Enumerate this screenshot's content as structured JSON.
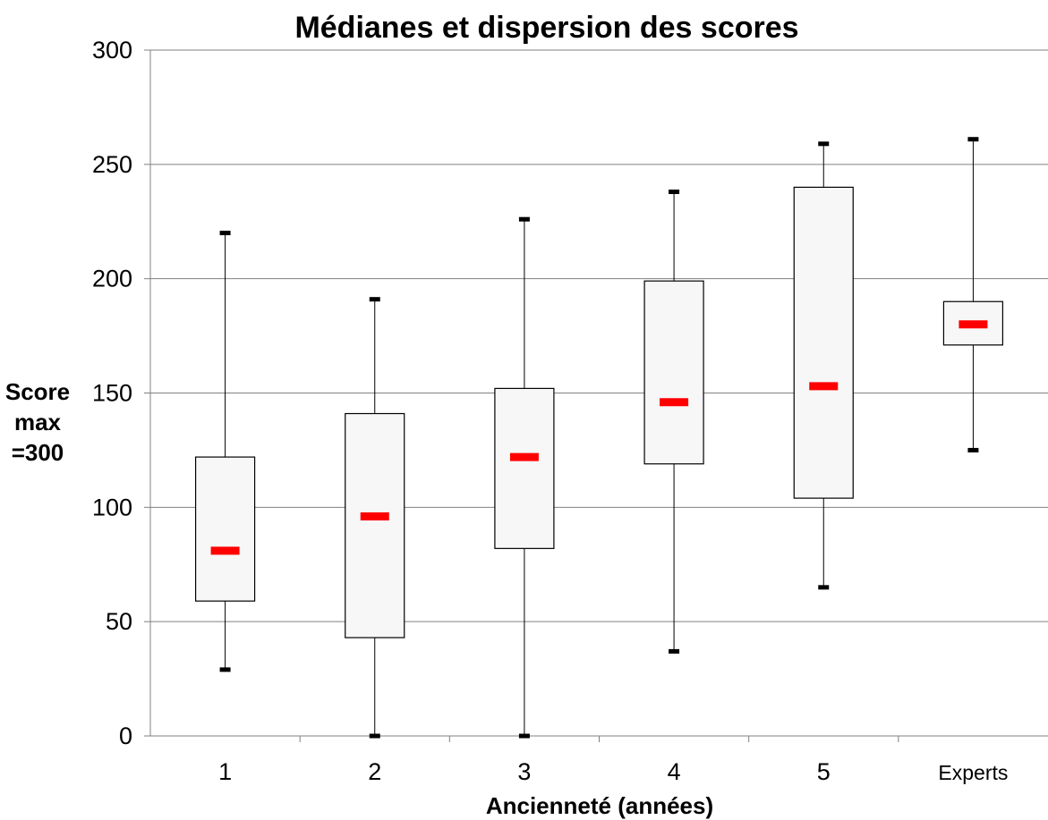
{
  "chart_data": {
    "type": "boxplot",
    "title": "Médianes et dispersion des scores",
    "xlabel": "Ancienneté (années)",
    "ylabel_lines": [
      "Score",
      "max",
      "=300"
    ],
    "ylim": [
      0,
      300
    ],
    "yticks": [
      "0",
      "50",
      "100",
      "150",
      "200",
      "250",
      "300"
    ],
    "grid": true,
    "categories": [
      "1",
      "2",
      "3",
      "4",
      "5",
      "Experts"
    ],
    "series": [
      {
        "min": 29,
        "q1": 59,
        "median": 81,
        "q3": 122,
        "max": 220
      },
      {
        "min": 0,
        "q1": 43,
        "median": 96,
        "q3": 141,
        "max": 191
      },
      {
        "min": 0,
        "q1": 82,
        "median": 122,
        "q3": 152,
        "max": 226
      },
      {
        "min": 37,
        "q1": 119,
        "median": 146,
        "q3": 199,
        "max": 238
      },
      {
        "min": 65,
        "q1": 104,
        "median": 153,
        "q3": 240,
        "max": 259
      },
      {
        "min": 125,
        "q1": 171,
        "median": 180,
        "q3": 190,
        "max": 261
      }
    ],
    "colors": {
      "box_fill": "#f7f7f7",
      "median": "#ff0000",
      "lines": "#000000",
      "grid": "#808080"
    }
  }
}
